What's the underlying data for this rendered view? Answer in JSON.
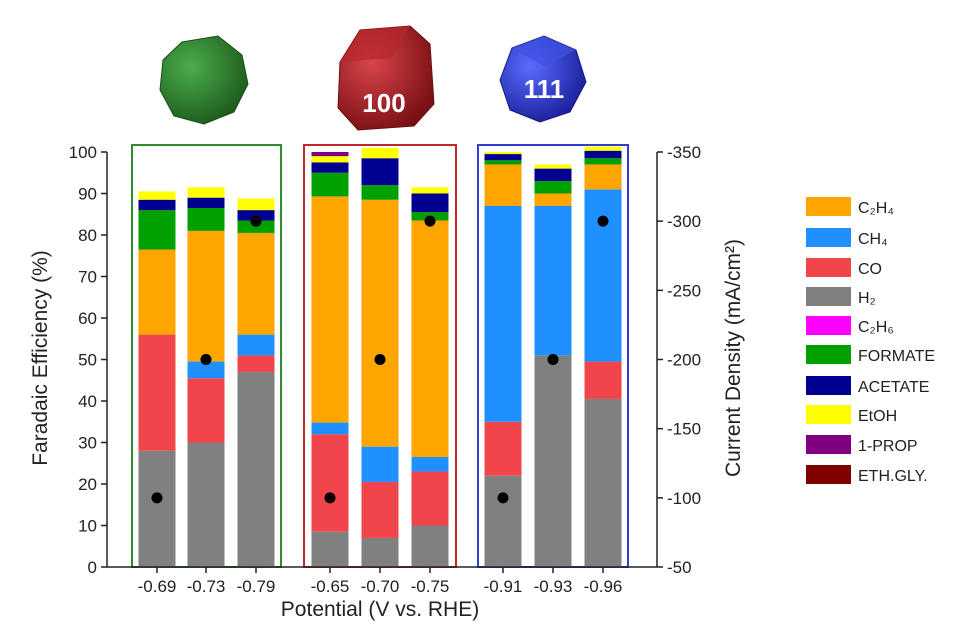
{
  "chart_data": {
    "type": "bar",
    "stacked": true,
    "xlabel": "Potential (V vs. RHE)",
    "ylabel": "Faradaic Efficiency (%)",
    "y2label": "Current Density (mA/cm²)",
    "ylim": [
      0,
      100
    ],
    "y2lim": [
      -50,
      -350
    ],
    "yticks": [
      0,
      10,
      20,
      30,
      40,
      50,
      60,
      70,
      80,
      90,
      100
    ],
    "y2ticks": [
      -50,
      -100,
      -150,
      -200,
      -250,
      -300,
      -350
    ],
    "categories": [
      "-0.69",
      "-0.73",
      "-0.79",
      "-0.65",
      "-0.70",
      "-0.75",
      "-0.91",
      "-0.93",
      "-0.96"
    ],
    "groups": [
      {
        "label": "",
        "color": "#2e8b2e",
        "shape": "sphere-green",
        "members": [
          0,
          1,
          2
        ]
      },
      {
        "label": "100",
        "color": "#c0282d",
        "shape": "cube-red",
        "members": [
          3,
          4,
          5
        ]
      },
      {
        "label": "111",
        "color": "#2f3fd0",
        "shape": "octahedron-blue",
        "members": [
          6,
          7,
          8
        ]
      }
    ],
    "series": [
      {
        "name": "H₂",
        "color": "#808080",
        "values": [
          28,
          30,
          47,
          8.5,
          7,
          10,
          22,
          51,
          40.5
        ]
      },
      {
        "name": "CO",
        "color": "#f0454a",
        "values": [
          28,
          15.5,
          4,
          23.5,
          13.5,
          13,
          13,
          0,
          9
        ]
      },
      {
        "name": "CH₄",
        "color": "#1e90ff",
        "values": [
          0,
          4,
          5,
          2.8,
          8.5,
          3.5,
          52,
          36,
          41.5
        ]
      },
      {
        "name": "C₂H₄",
        "color": "#ffa500",
        "values": [
          20.5,
          31.5,
          24.5,
          54.5,
          59.5,
          57,
          10,
          3,
          6
        ]
      },
      {
        "name": "C₂H₆",
        "color": "#ff00ff",
        "values": [
          0,
          0,
          0,
          0,
          0,
          0,
          0,
          0,
          0
        ]
      },
      {
        "name": "FORMATE",
        "color": "#00a000",
        "values": [
          9.5,
          5.5,
          3,
          5.7,
          3.5,
          2,
          1,
          3,
          1.5
        ]
      },
      {
        "name": "ACETATE",
        "color": "#000090",
        "values": [
          2.5,
          2.5,
          2.5,
          2.5,
          6.5,
          4.5,
          1.5,
          3,
          1.8
        ]
      },
      {
        "name": "EtOH",
        "color": "#ffff00",
        "values": [
          2,
          2.5,
          2.8,
          1.5,
          2.5,
          1.5,
          0.5,
          1,
          1
        ]
      },
      {
        "name": "1-PROP",
        "color": "#800080",
        "values": [
          0,
          0,
          0,
          1,
          0,
          0,
          0,
          0,
          0
        ]
      },
      {
        "name": "ETH.GLY.",
        "color": "#800000",
        "values": [
          0,
          0,
          0,
          0,
          0,
          0,
          0,
          0,
          0
        ]
      }
    ],
    "current_density": [
      -100,
      -200,
      -300,
      -100,
      -200,
      -300,
      -100,
      -200,
      -300
    ],
    "legend": [
      {
        "text": "C₂H₄",
        "color": "#ffa500"
      },
      {
        "text": "CH₄",
        "color": "#1e90ff"
      },
      {
        "text": "CO",
        "color": "#f0454a"
      },
      {
        "text": "H₂",
        "color": "#808080"
      },
      {
        "text": "C₂H₆",
        "color": "#ff00ff"
      },
      {
        "text": "FORMATE",
        "color": "#00a000"
      },
      {
        "text": "ACETATE",
        "color": "#000090"
      },
      {
        "text": "EtOH",
        "color": "#ffff00"
      },
      {
        "text": "1-PROP",
        "color": "#800080"
      },
      {
        "text": "ETH.GLY.",
        "color": "#800000"
      }
    ],
    "legend_position": "right"
  }
}
